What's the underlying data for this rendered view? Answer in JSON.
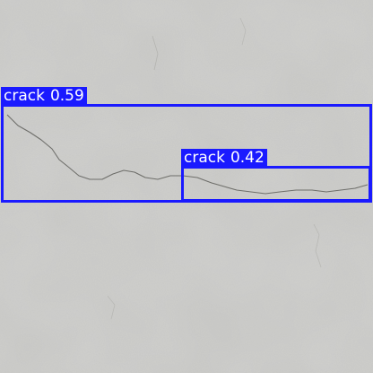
{
  "image": {
    "subject": "concrete-wall-surface",
    "box_color": "#1a1aff",
    "label_text_color": "#ffffff"
  },
  "detections": [
    {
      "label": "crack",
      "score": "0.59"
    },
    {
      "label": "crack",
      "score": "0.42"
    }
  ]
}
